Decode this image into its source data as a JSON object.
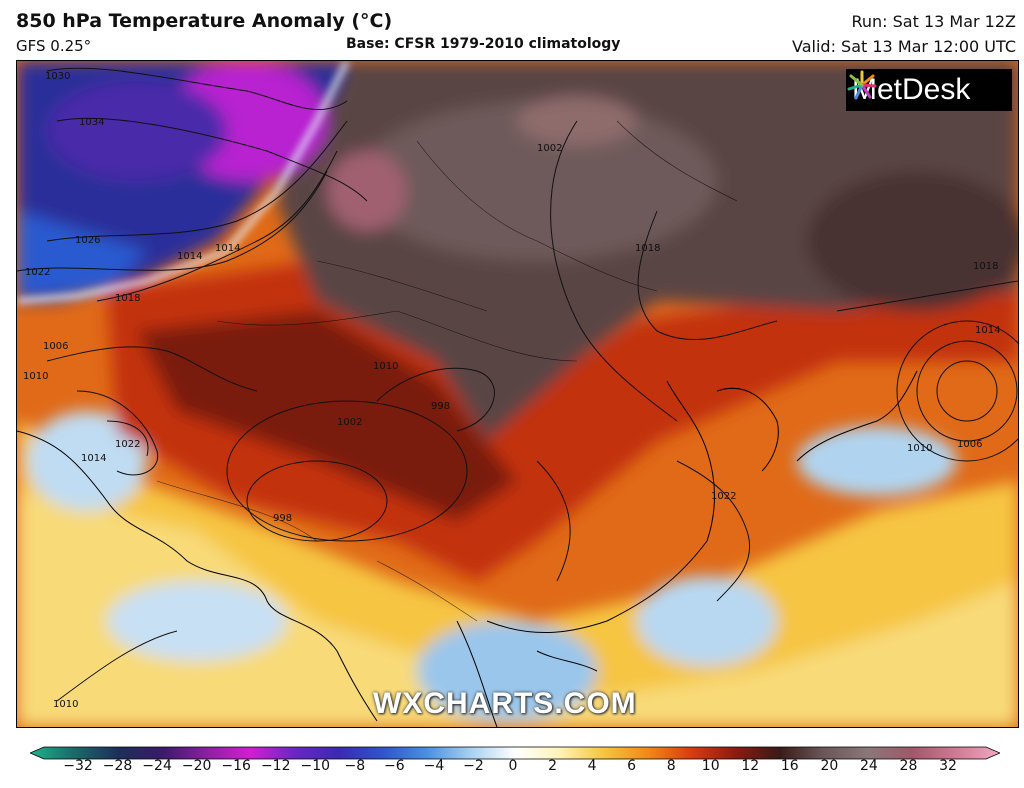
{
  "header": {
    "title": "850 hPa Temperature Anomaly (°C)",
    "model": "GFS 0.25°",
    "base": "Base: CFSR 1979-2010 climatology",
    "run": "Run: Sat 13 Mar 12Z",
    "valid": "Valid: Sat 13 Mar 12:00 UTC"
  },
  "branding": {
    "logo_text": "MetDesk",
    "watermark": "WXCHARTS.COM"
  },
  "isobar_labels": [
    "1030",
    "1034",
    "1026",
    "1022",
    "1014",
    "1018",
    "1006",
    "1010",
    "998",
    "1002",
    "1014",
    "1018",
    "1010",
    "1006",
    "1022",
    "1002",
    "998",
    "1010",
    "1014",
    "1018",
    "1022",
    "1010",
    "1014"
  ],
  "colorbar": {
    "ticks": [
      "−32",
      "−28",
      "−24",
      "−20",
      "−16",
      "−12",
      "−10",
      "−8",
      "−6",
      "−4",
      "−2",
      "0",
      "2",
      "4",
      "6",
      "8",
      "10",
      "12",
      "16",
      "20",
      "24",
      "28",
      "32"
    ],
    "colors": [
      "#1fb28a",
      "#1a6a6a",
      "#1c2f5a",
      "#3a1a6a",
      "#8a20a0",
      "#d020d0",
      "#6a28c0",
      "#3a2ab0",
      "#2f55c8",
      "#4a90e0",
      "#a8d0f0",
      "#ffffff",
      "#fff4b8",
      "#f6c542",
      "#f08a1a",
      "#d83c10",
      "#8a1c10",
      "#3a1a18",
      "#6a5858",
      "#8a7878",
      "#a05868",
      "#d07a94",
      "#f0a8c0"
    ]
  }
}
